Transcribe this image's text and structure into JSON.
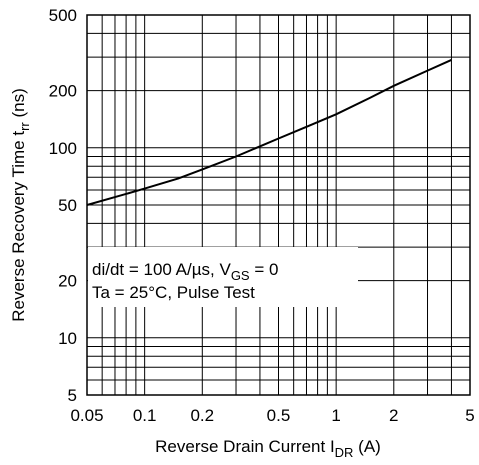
{
  "chart_data": {
    "type": "line",
    "x_scale": "log",
    "y_scale": "log",
    "xlim": [
      0.05,
      5
    ],
    "ylim": [
      5,
      500
    ],
    "grid": true,
    "x_ticks": [
      "0.05",
      "0.1",
      "0.2",
      "0.5",
      "1",
      "2",
      "5"
    ],
    "y_ticks": [
      "500",
      "200",
      "100",
      "50",
      "20",
      "10",
      "5"
    ],
    "xlabel": {
      "main": "Reverse Drain Current  I",
      "sub": "DR",
      "unit": "  (A)"
    },
    "ylabel": {
      "main": "Reverse Recovery Time  t",
      "sub": "rr",
      "unit": "  (ns)"
    },
    "annotation": {
      "line1_a": "di/dt = 100 A/µs, V",
      "line1_sub": "GS",
      "line1_b": " = 0",
      "line2": "Ta = 25°C, Pulse Test"
    },
    "series": [
      {
        "x": [
          0.05,
          0.07,
          0.1,
          0.15,
          0.2,
          0.3,
          0.5,
          0.7,
          1.0,
          1.5,
          2.0,
          3.0,
          4.0
        ],
        "y": [
          50,
          55,
          61,
          69,
          77,
          90,
          112,
          129,
          150,
          183,
          212,
          255,
          290
        ]
      }
    ]
  }
}
